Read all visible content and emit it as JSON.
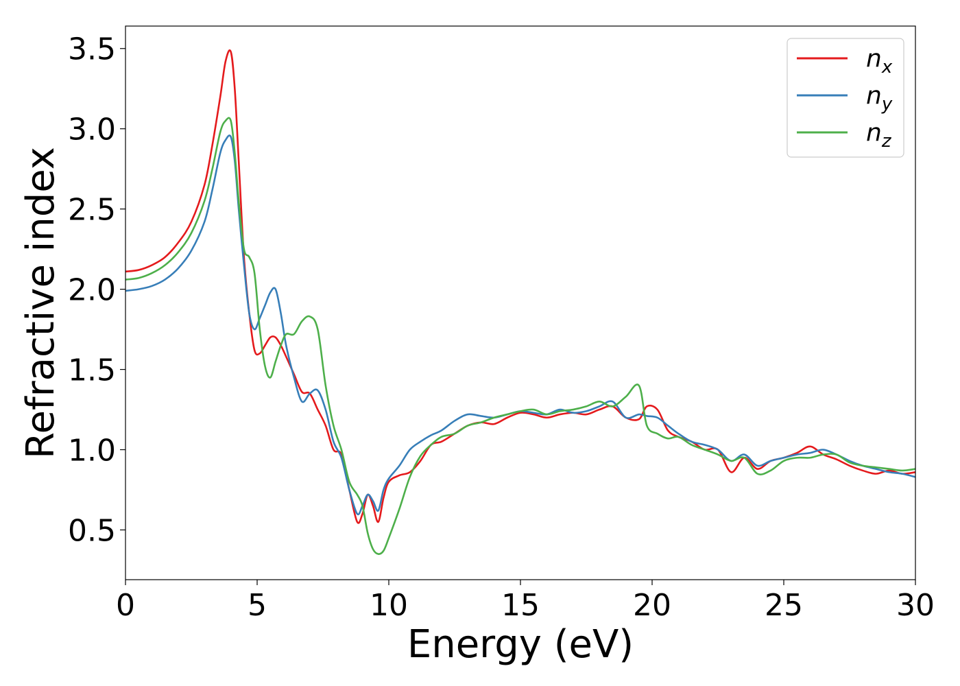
{
  "chart_data": {
    "type": "line",
    "title": "",
    "xlabel": "Energy (eV)",
    "ylabel": "Refractive index",
    "xlim": [
      0,
      30
    ],
    "ylim": [
      0.19,
      3.64
    ],
    "xticks": [
      0,
      5,
      10,
      15,
      20,
      25,
      30
    ],
    "xtick_labels": [
      "0",
      "5",
      "10",
      "15",
      "20",
      "25",
      "30"
    ],
    "yticks": [
      0.5,
      1.0,
      1.5,
      2.0,
      2.5,
      3.0,
      3.5
    ],
    "ytick_labels": [
      "0.5",
      "1.0",
      "1.5",
      "2.0",
      "2.5",
      "3.0",
      "3.5"
    ],
    "grid": false,
    "legend_position": "top-right",
    "series": [
      {
        "name": "n_x",
        "label_base": "n",
        "label_sub": "x",
        "color": "#e41a1c",
        "x": [
          0,
          0.5,
          1,
          1.5,
          2,
          2.5,
          3,
          3.3,
          3.6,
          3.8,
          4.0,
          4.15,
          4.3,
          4.5,
          4.7,
          4.9,
          5.1,
          5.3,
          5.5,
          5.7,
          5.9,
          6.1,
          6.4,
          6.7,
          7.0,
          7.3,
          7.6,
          7.9,
          8.2,
          8.5,
          8.8,
          9.0,
          9.2,
          9.4,
          9.6,
          9.8,
          10.0,
          10.4,
          10.8,
          11.2,
          11.6,
          12,
          12.5,
          13,
          13.5,
          14,
          14.5,
          15,
          15.5,
          16,
          16.5,
          17,
          17.5,
          18,
          18.5,
          19,
          19.5,
          19.8,
          20.2,
          20.6,
          21,
          21.5,
          22,
          22.5,
          23,
          23.5,
          24,
          24.5,
          25,
          25.5,
          26,
          26.5,
          27,
          27.5,
          28,
          28.5,
          29,
          29.5,
          30
        ],
        "y": [
          2.11,
          2.12,
          2.15,
          2.2,
          2.29,
          2.42,
          2.65,
          2.9,
          3.2,
          3.42,
          3.48,
          3.25,
          2.8,
          2.2,
          1.85,
          1.62,
          1.6,
          1.65,
          1.7,
          1.7,
          1.65,
          1.58,
          1.47,
          1.36,
          1.35,
          1.25,
          1.15,
          1.0,
          0.97,
          0.75,
          0.55,
          0.6,
          0.72,
          0.65,
          0.55,
          0.7,
          0.8,
          0.84,
          0.86,
          0.93,
          1.03,
          1.05,
          1.1,
          1.15,
          1.17,
          1.16,
          1.2,
          1.23,
          1.22,
          1.2,
          1.22,
          1.23,
          1.22,
          1.25,
          1.27,
          1.2,
          1.19,
          1.27,
          1.25,
          1.12,
          1.08,
          1.05,
          1.0,
          1.0,
          0.86,
          0.95,
          0.88,
          0.93,
          0.95,
          0.98,
          1.02,
          0.97,
          0.94,
          0.9,
          0.87,
          0.85,
          0.87,
          0.85,
          0.86
        ]
      },
      {
        "name": "n_y",
        "label_base": "n",
        "label_sub": "y",
        "color": "#377eb8",
        "x": [
          0,
          0.5,
          1,
          1.5,
          2,
          2.5,
          3,
          3.3,
          3.6,
          3.8,
          4.0,
          4.15,
          4.3,
          4.5,
          4.7,
          4.9,
          5.1,
          5.3,
          5.5,
          5.7,
          5.9,
          6.1,
          6.4,
          6.7,
          7.0,
          7.3,
          7.6,
          7.9,
          8.2,
          8.5,
          8.8,
          9.0,
          9.2,
          9.4,
          9.6,
          9.8,
          10.0,
          10.4,
          10.8,
          11.2,
          11.6,
          12,
          12.5,
          13,
          13.5,
          14,
          14.5,
          15,
          15.5,
          16,
          16.5,
          17,
          17.5,
          18,
          18.5,
          19,
          19.5,
          19.8,
          20.2,
          20.6,
          21,
          21.5,
          22,
          22.5,
          23,
          23.5,
          24,
          24.5,
          25,
          25.5,
          26,
          26.5,
          27,
          27.5,
          28,
          28.5,
          29,
          29.5,
          30
        ],
        "y": [
          1.99,
          2.0,
          2.02,
          2.06,
          2.13,
          2.24,
          2.42,
          2.62,
          2.85,
          2.93,
          2.95,
          2.8,
          2.5,
          2.15,
          1.85,
          1.75,
          1.82,
          1.9,
          1.98,
          2.0,
          1.85,
          1.65,
          1.45,
          1.3,
          1.35,
          1.37,
          1.25,
          1.05,
          0.95,
          0.75,
          0.6,
          0.65,
          0.72,
          0.68,
          0.62,
          0.75,
          0.82,
          0.9,
          1.0,
          1.05,
          1.09,
          1.12,
          1.18,
          1.22,
          1.21,
          1.2,
          1.22,
          1.24,
          1.23,
          1.22,
          1.25,
          1.23,
          1.24,
          1.27,
          1.3,
          1.2,
          1.22,
          1.21,
          1.2,
          1.15,
          1.1,
          1.05,
          1.03,
          1.0,
          0.93,
          0.97,
          0.9,
          0.93,
          0.95,
          0.97,
          0.98,
          1.0,
          0.97,
          0.93,
          0.9,
          0.88,
          0.86,
          0.85,
          0.83
        ]
      },
      {
        "name": "n_z",
        "label_base": "n",
        "label_sub": "z",
        "color": "#4daf4a",
        "x": [
          0,
          0.5,
          1,
          1.5,
          2,
          2.5,
          3,
          3.3,
          3.6,
          3.8,
          4.0,
          4.15,
          4.3,
          4.5,
          4.7,
          4.9,
          5.1,
          5.3,
          5.5,
          5.7,
          5.9,
          6.1,
          6.4,
          6.7,
          7.0,
          7.3,
          7.6,
          7.9,
          8.2,
          8.5,
          8.8,
          9.0,
          9.2,
          9.4,
          9.6,
          9.8,
          10.0,
          10.4,
          10.8,
          11.2,
          11.6,
          12,
          12.5,
          13,
          13.5,
          14,
          14.5,
          15,
          15.5,
          16,
          16.5,
          17,
          17.5,
          18,
          18.5,
          19,
          19.5,
          19.8,
          20.2,
          20.6,
          21,
          21.5,
          22,
          22.5,
          23,
          23.5,
          24,
          24.5,
          25,
          25.5,
          26,
          26.5,
          27,
          27.5,
          28,
          28.5,
          29,
          29.5,
          30
        ],
        "y": [
          2.06,
          2.07,
          2.1,
          2.15,
          2.23,
          2.35,
          2.55,
          2.75,
          2.98,
          3.05,
          3.05,
          2.85,
          2.55,
          2.25,
          2.2,
          2.1,
          1.75,
          1.52,
          1.45,
          1.55,
          1.65,
          1.72,
          1.72,
          1.8,
          1.83,
          1.75,
          1.4,
          1.15,
          1.0,
          0.8,
          0.72,
          0.65,
          0.48,
          0.38,
          0.35,
          0.37,
          0.45,
          0.63,
          0.83,
          0.96,
          1.03,
          1.08,
          1.1,
          1.15,
          1.17,
          1.2,
          1.22,
          1.24,
          1.25,
          1.22,
          1.24,
          1.25,
          1.27,
          1.3,
          1.27,
          1.33,
          1.4,
          1.15,
          1.1,
          1.07,
          1.08,
          1.03,
          1.0,
          0.97,
          0.93,
          0.95,
          0.85,
          0.87,
          0.93,
          0.95,
          0.95,
          0.97,
          0.97,
          0.92,
          0.9,
          0.89,
          0.88,
          0.87,
          0.88
        ]
      }
    ]
  }
}
